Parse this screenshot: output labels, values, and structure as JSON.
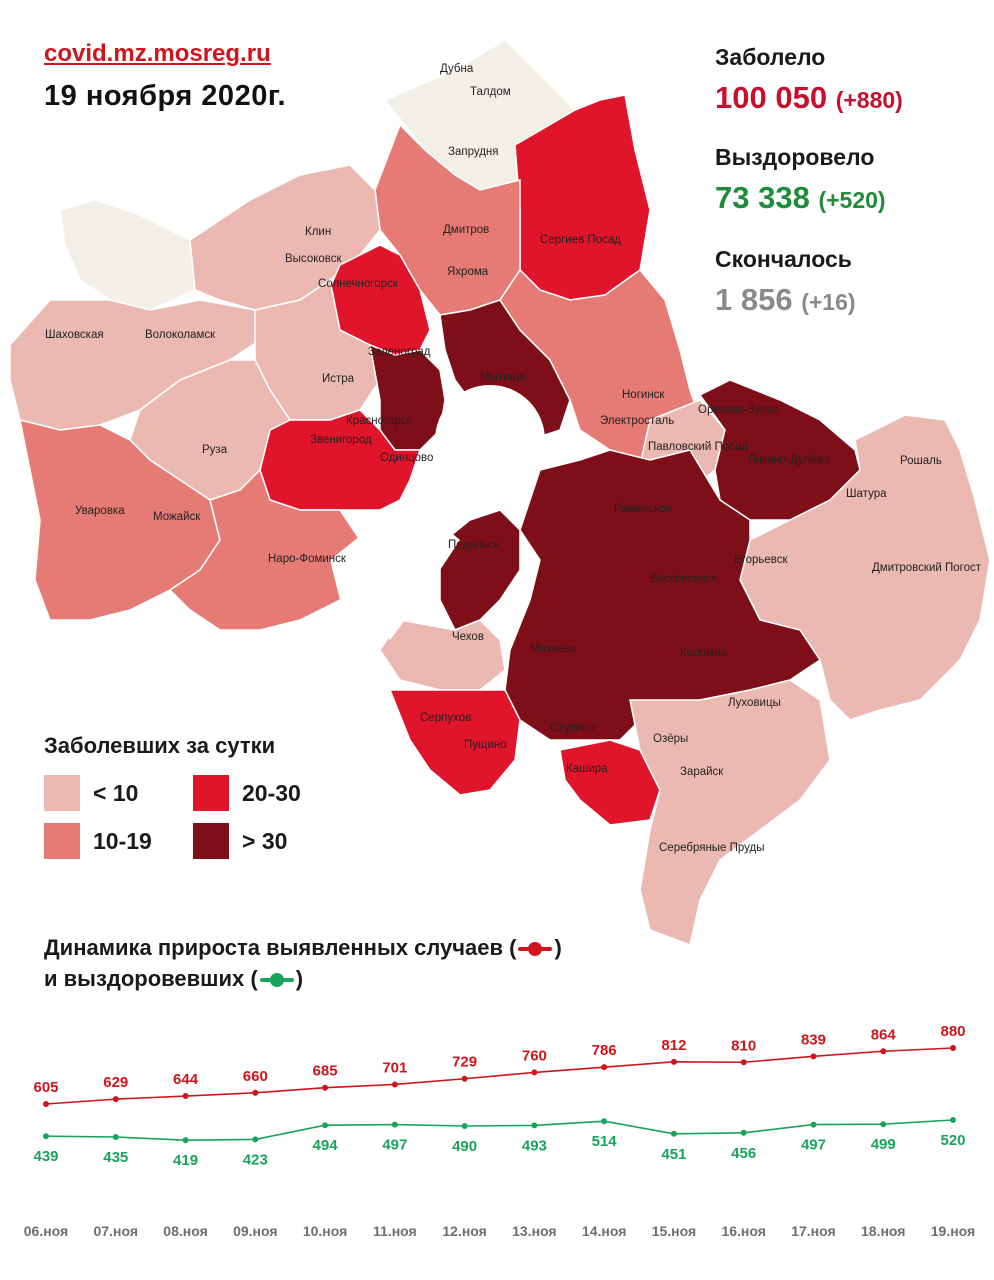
{
  "header": {
    "site": "covid.mz.mosreg.ru",
    "date": "19 ноября 2020г."
  },
  "stats": {
    "sick": {
      "label": "Заболело",
      "value": "100 050",
      "delta": "(+880)",
      "color": "#c8102e"
    },
    "recovered": {
      "label": "Выздоровело",
      "value": "73 338",
      "delta": "(+520)",
      "color": "#1e8c3a"
    },
    "died": {
      "label": "Скончалось",
      "value": "1 856",
      "delta": "(+16)",
      "color": "#8a8a8a"
    }
  },
  "legend": {
    "title": "Заболевших за сутки",
    "items": [
      {
        "label": "< 10",
        "color": "#ecb8b2"
      },
      {
        "label": "10-19",
        "color": "#e67a74"
      },
      {
        "label": "20-30",
        "color": "#e0142a"
      },
      {
        "label": "> 30",
        "color": "#7e0f18"
      }
    ]
  },
  "map": {
    "colors": {
      "c0": "#f2efe6",
      "c1": "#ecb8b2",
      "c2": "#e67a74",
      "c3": "#e0142a",
      "c4": "#7e0f18"
    },
    "labels": [
      "Дубна",
      "Талдом",
      "Запрудня",
      "Клин",
      "Высоковск",
      "Дмитров",
      "Яхрома",
      "Сергиев Посад",
      "Солнечногорск",
      "Шаховская",
      "Волоколамск",
      "Зеленоград",
      "Истра",
      "Мытищи",
      "Ногинск",
      "Электросталь",
      "Орехово-Зуево",
      "Красногорск",
      "Звенигород",
      "Одинцово",
      "Павловский Посад",
      "Ликино-Дулёво",
      "Руза",
      "Рошаль",
      "Шатура",
      "Уваровка",
      "Можайск",
      "Раменское",
      "Наро-Фоминск",
      "Подольск",
      "Егорьевск",
      "Дмитровский Погост",
      "Воскресенск",
      "Чехов",
      "Михнево",
      "Коломна",
      "Луховицы",
      "Серпухов",
      "Пущино",
      "Ступино",
      "Озёры",
      "Кашира",
      "Зарайск",
      "Серебряные Пруды"
    ]
  },
  "dynamics": {
    "title_line1": "Динамика прироста выявленных случаев (",
    "title_line2": "и выздоровевших (",
    "close_paren": ")",
    "cases_color": "#d0141c",
    "recovered_color": "#1aa35a"
  },
  "chart_data": {
    "type": "line",
    "categories": [
      "06.ноя",
      "07.ноя",
      "08.ноя",
      "09.ноя",
      "10.ноя",
      "11.ноя",
      "12.ноя",
      "13.ноя",
      "14.ноя",
      "15.ноя",
      "16.ноя",
      "17.ноя",
      "18.ноя",
      "19.ноя"
    ],
    "series": [
      {
        "values": [
          605,
          629,
          644,
          660,
          685,
          701,
          729,
          760,
          786,
          812,
          810,
          839,
          864,
          880
        ],
        "color": "#d0141c"
      },
      {
        "values": [
          439,
          435,
          419,
          423,
          494,
          497,
          490,
          493,
          514,
          451,
          456,
          497,
          499,
          520
        ],
        "color": "#1aa35a"
      }
    ],
    "title": "",
    "xlabel": "",
    "ylabel": "",
    "grid": false,
    "legend": "none"
  }
}
